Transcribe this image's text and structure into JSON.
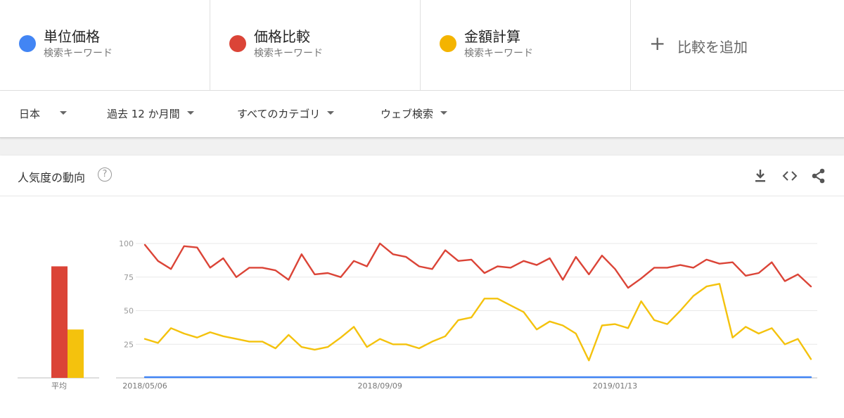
{
  "terms": [
    {
      "name": "単位価格",
      "sub": "検索キーワード",
      "color": "#4285f4"
    },
    {
      "name": "価格比較",
      "sub": "検索キーワード",
      "color": "#db4437"
    },
    {
      "name": "金額計算",
      "sub": "検索キーワード",
      "color": "#f4b400"
    }
  ],
  "add_compare": {
    "label": "比較を追加",
    "icon": "plus-icon"
  },
  "filters": {
    "region": "日本",
    "period": "過去 12 か月間",
    "category": "すべてのカテゴリ",
    "search_type": "ウェブ検索"
  },
  "card": {
    "title": "人気度の動向",
    "help_icon": "help-icon",
    "actions": [
      "download-icon",
      "embed-icon",
      "share-icon"
    ]
  },
  "chart_data": {
    "type": "line",
    "ylim": [
      0,
      100
    ],
    "yticks": [
      "100",
      "75",
      "50",
      "25"
    ],
    "xticks": [
      {
        "label": "2018/05/06",
        "index": 0
      },
      {
        "label": "2018/09/09",
        "index": 18
      },
      {
        "label": "2019/01/13",
        "index": 36
      }
    ],
    "series": [
      {
        "name": "価格比較",
        "color": "#db4437",
        "values": [
          99,
          87,
          81,
          98,
          97,
          82,
          89,
          75,
          82,
          82,
          80,
          73,
          92,
          77,
          78,
          75,
          87,
          83,
          100,
          92,
          90,
          83,
          81,
          95,
          87,
          88,
          78,
          83,
          82,
          87,
          84,
          89,
          73,
          90,
          77,
          91,
          81,
          67,
          74,
          82,
          82,
          84,
          82,
          88,
          85,
          86,
          76,
          78,
          86,
          72,
          77,
          68
        ]
      },
      {
        "name": "金額計算",
        "color": "#f4c20d",
        "values": [
          29,
          26,
          37,
          33,
          30,
          34,
          31,
          29,
          27,
          27,
          22,
          32,
          23,
          21,
          23,
          30,
          38,
          23,
          29,
          25,
          25,
          22,
          27,
          31,
          43,
          45,
          59,
          59,
          54,
          49,
          36,
          42,
          39,
          33,
          13,
          39,
          40,
          37,
          57,
          43,
          40,
          50,
          61,
          68,
          70,
          30,
          38,
          33,
          37,
          25,
          29,
          14
        ]
      },
      {
        "name": "単位価格",
        "color": "#4285f4",
        "values": [
          0,
          0,
          0,
          0,
          0,
          0,
          0,
          0,
          0,
          0,
          0,
          0,
          0,
          0,
          0,
          0,
          0,
          0,
          0,
          0,
          0,
          0,
          0,
          0,
          0,
          0,
          0,
          0,
          0,
          0,
          0,
          0,
          0,
          0,
          0,
          0,
          0,
          0,
          0,
          0,
          0,
          0,
          0,
          0,
          0,
          0,
          0,
          0,
          0,
          0,
          0,
          0
        ]
      }
    ],
    "average": {
      "label": "平均",
      "bars": [
        {
          "series": "価格比較",
          "value": 83,
          "color": "#db4437"
        },
        {
          "series": "金額計算",
          "value": 36,
          "color": "#f4c20d"
        }
      ]
    }
  }
}
